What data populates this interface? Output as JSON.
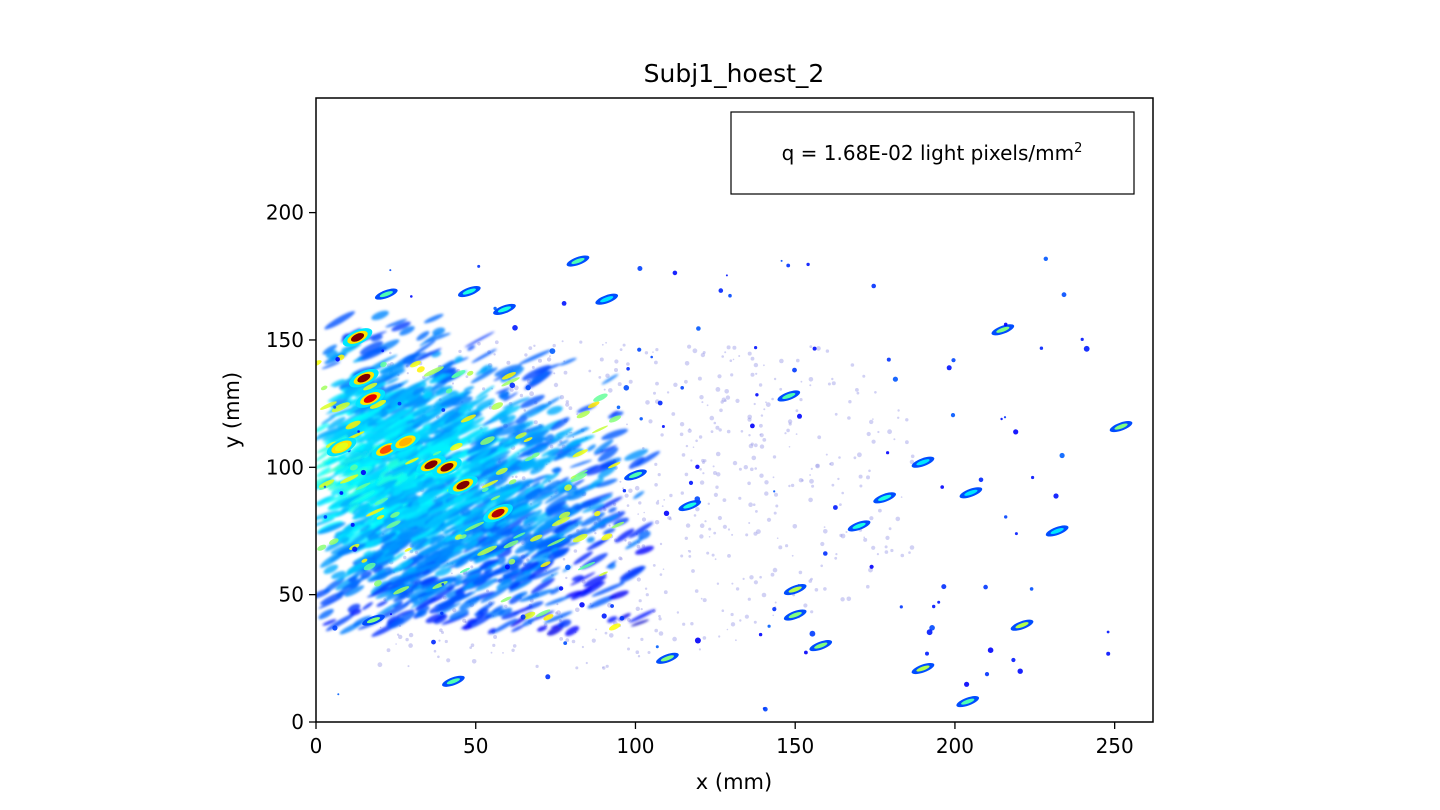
{
  "chart_data": {
    "type": "heatmap",
    "title": "Subj1_hoest_2",
    "xlabel": "x (mm)",
    "ylabel": "y (mm)",
    "xlim": [
      0,
      262
    ],
    "ylim": [
      0,
      245
    ],
    "x_ticks": [
      0,
      50,
      100,
      150,
      200,
      250
    ],
    "y_ticks": [
      0,
      50,
      100,
      150,
      200
    ],
    "annotation": {
      "text": "q = 1.68E-02 light pixels/mm",
      "superscript": "2",
      "placement": "top-right"
    },
    "colormap": "jet",
    "background": "#ffffff",
    "hotspots": [
      {
        "x": 13,
        "y": 151,
        "value": 1.0
      },
      {
        "x": 15,
        "y": 135,
        "value": 1.0
      },
      {
        "x": 17,
        "y": 127,
        "value": 0.9
      },
      {
        "x": 36,
        "y": 101,
        "value": 1.0
      },
      {
        "x": 41,
        "y": 100,
        "value": 1.0
      },
      {
        "x": 46,
        "y": 93,
        "value": 1.0
      },
      {
        "x": 57,
        "y": 82,
        "value": 0.95
      },
      {
        "x": 22,
        "y": 107,
        "value": 0.8
      },
      {
        "x": 28,
        "y": 110,
        "value": 0.7
      },
      {
        "x": 8,
        "y": 108,
        "value": 0.6
      }
    ],
    "blobs": [
      {
        "x": 82,
        "y": 181,
        "value": 0.45
      },
      {
        "x": 22,
        "y": 168,
        "value": 0.45
      },
      {
        "x": 48,
        "y": 169,
        "value": 0.4
      },
      {
        "x": 59,
        "y": 162,
        "value": 0.4
      },
      {
        "x": 91,
        "y": 166,
        "value": 0.35
      },
      {
        "x": 215,
        "y": 154,
        "value": 0.5
      },
      {
        "x": 148,
        "y": 128,
        "value": 0.45
      },
      {
        "x": 252,
        "y": 116,
        "value": 0.5
      },
      {
        "x": 190,
        "y": 21,
        "value": 0.55
      },
      {
        "x": 204,
        "y": 8,
        "value": 0.45
      },
      {
        "x": 221,
        "y": 38,
        "value": 0.55
      },
      {
        "x": 150,
        "y": 42,
        "value": 0.5
      },
      {
        "x": 158,
        "y": 30,
        "value": 0.5
      },
      {
        "x": 110,
        "y": 25,
        "value": 0.5
      },
      {
        "x": 43,
        "y": 16,
        "value": 0.45
      },
      {
        "x": 18,
        "y": 40,
        "value": 0.5
      },
      {
        "x": 150,
        "y": 52,
        "value": 0.55
      },
      {
        "x": 178,
        "y": 88,
        "value": 0.4
      },
      {
        "x": 190,
        "y": 102,
        "value": 0.35
      },
      {
        "x": 100,
        "y": 97,
        "value": 0.45
      },
      {
        "x": 117,
        "y": 85,
        "value": 0.4
      },
      {
        "x": 170,
        "y": 77,
        "value": 0.4
      },
      {
        "x": 205,
        "y": 90,
        "value": 0.35
      },
      {
        "x": 232,
        "y": 75,
        "value": 0.35
      }
    ]
  }
}
